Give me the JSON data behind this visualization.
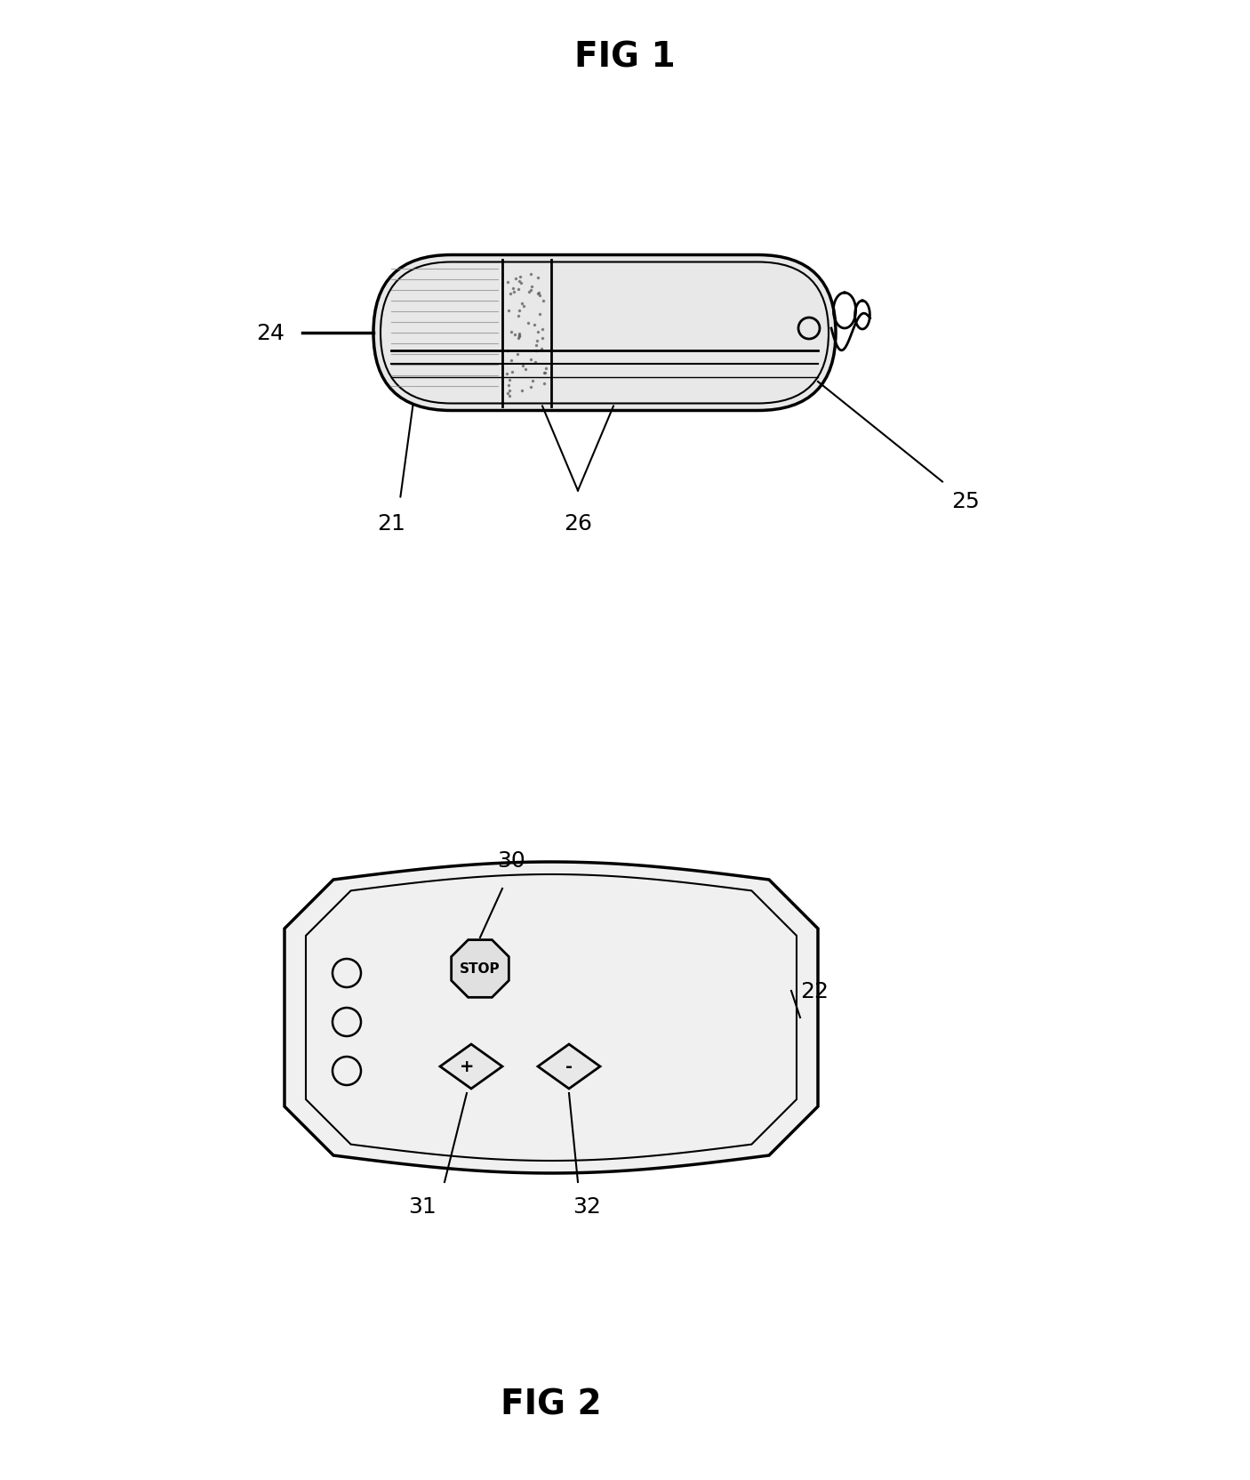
{
  "fig1_title": "FIG 1",
  "fig2_title": "FIG 2",
  "label_24": "24",
  "label_21": "21",
  "label_26": "26",
  "label_25": "25",
  "label_22": "22",
  "label_30": "30",
  "label_31": "31",
  "label_32": "32",
  "stop_text": "STOP",
  "plus_text": "+",
  "minus_text": "-",
  "bg_color": "#ffffff",
  "line_color": "#000000",
  "text_color": "#000000",
  "font_size_title": 28,
  "font_size_label": 18
}
